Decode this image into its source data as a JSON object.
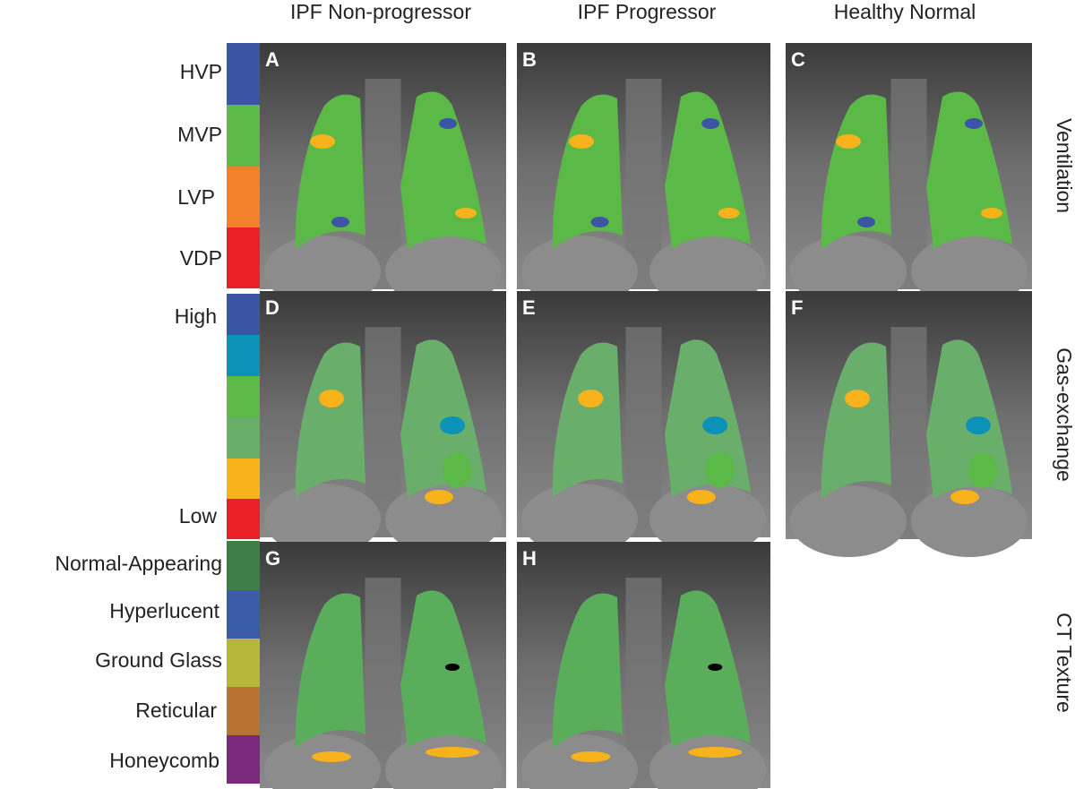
{
  "columns": [
    "IPF Non-progressor",
    "IPF Progressor",
    "Healthy Normal"
  ],
  "rows": [
    "Ventilation",
    "Gas-exchange",
    "CT Texture"
  ],
  "legends": [
    {
      "labels": [
        "HVP",
        "MVP",
        "LVP",
        "VDP"
      ]
    },
    {
      "labels": [
        "High",
        "Low"
      ]
    },
    {
      "labels": [
        "Normal-Appearing",
        "Hyperlucent",
        "Ground Glass",
        "Reticular",
        "Honeycomb"
      ]
    }
  ],
  "panels": [
    "A",
    "B",
    "C",
    "D",
    "E",
    "F",
    "G",
    "H"
  ]
}
